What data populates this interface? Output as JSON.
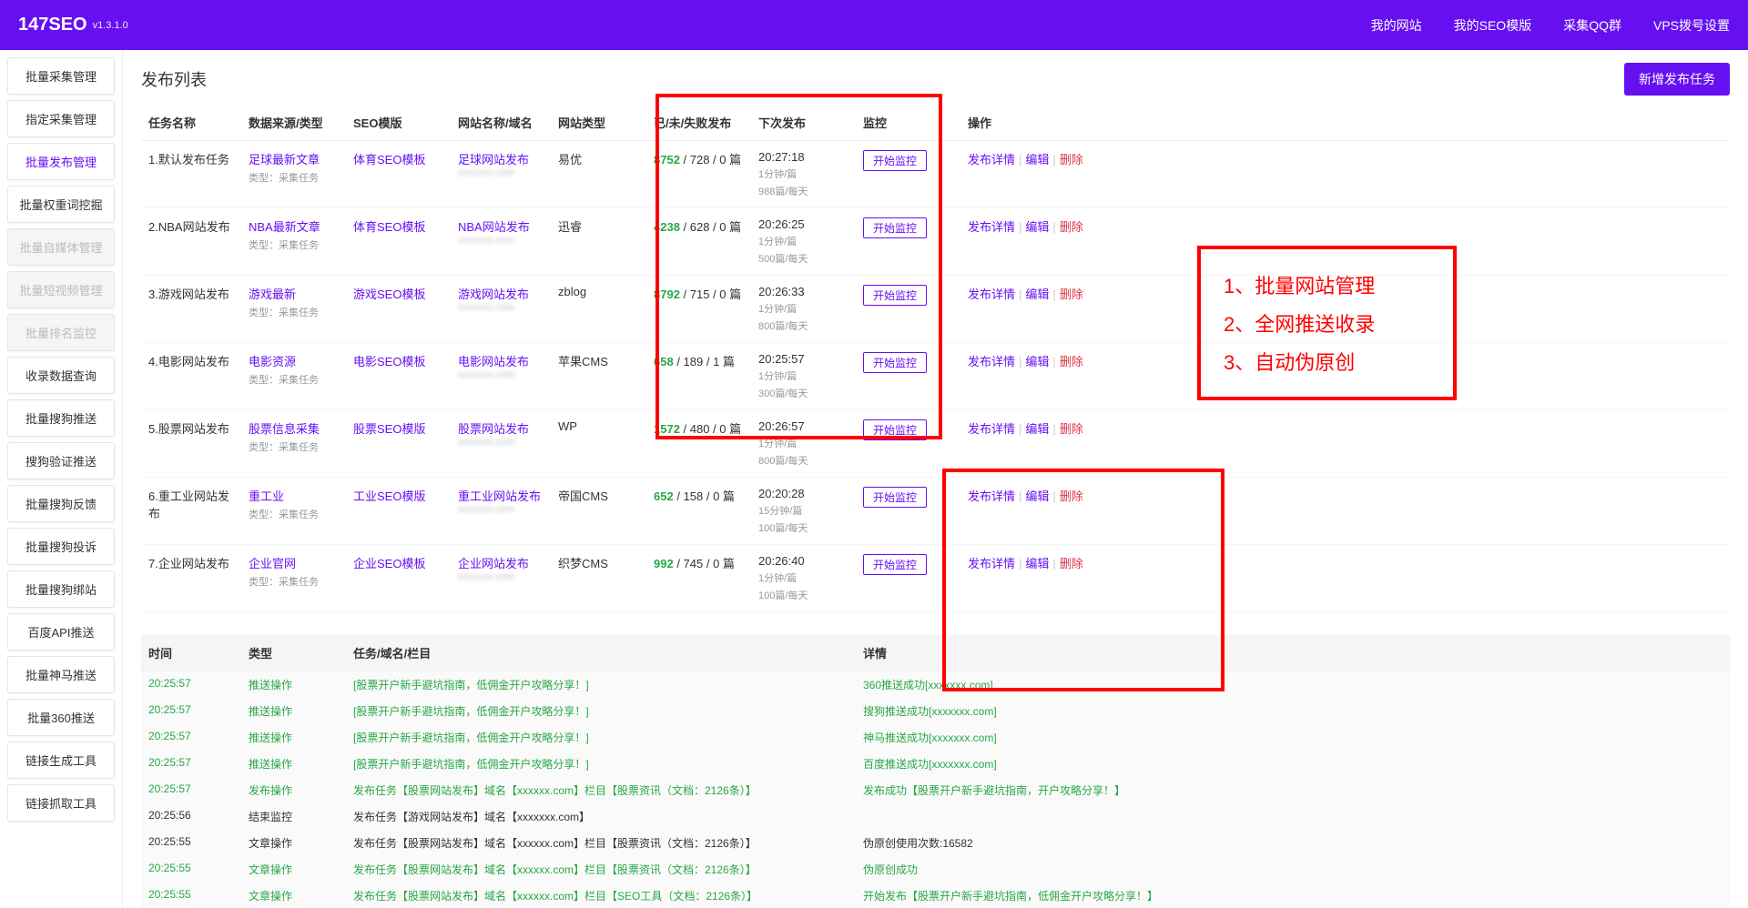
{
  "header": {
    "logo": "147SEO",
    "version": "v1.3.1.0",
    "nav": [
      "我的网站",
      "我的SEO模版",
      "采集QQ群",
      "VPS拨号设置"
    ]
  },
  "sidebar": {
    "items": [
      {
        "label": "批量采集管理",
        "state": ""
      },
      {
        "label": "指定采集管理",
        "state": ""
      },
      {
        "label": "批量发布管理",
        "state": "active"
      },
      {
        "label": "批量权重词挖掘",
        "state": ""
      },
      {
        "label": "批量自媒体管理",
        "state": "disabled"
      },
      {
        "label": "批量短视频管理",
        "state": "disabled"
      },
      {
        "label": "批量排名监控",
        "state": "disabled"
      },
      {
        "label": "收录数据查询",
        "state": ""
      },
      {
        "label": "批量搜狗推送",
        "state": ""
      },
      {
        "label": "搜狗验证推送",
        "state": ""
      },
      {
        "label": "批量搜狗反馈",
        "state": ""
      },
      {
        "label": "批量搜狗投诉",
        "state": ""
      },
      {
        "label": "批量搜狗绑站",
        "state": ""
      },
      {
        "label": "百度API推送",
        "state": ""
      },
      {
        "label": "批量神马推送",
        "state": ""
      },
      {
        "label": "批量360推送",
        "state": ""
      },
      {
        "label": "链接生成工具",
        "state": ""
      },
      {
        "label": "链接抓取工具",
        "state": ""
      }
    ]
  },
  "page": {
    "title": "发布列表",
    "new_button": "新增发布任务",
    "columns": [
      "任务名称",
      "数据来源/类型",
      "SEO模版",
      "网站名称/域名",
      "网站类型",
      "已/未/失败发布",
      "下次发布",
      "监控",
      "操作"
    ],
    "sub_type_label": "类型：采集任务",
    "monitor_btn": "开始监控",
    "op_detail": "发布详情",
    "op_edit": "编辑",
    "op_delete": "删除",
    "rows": [
      {
        "name": "1.默认发布任务",
        "source": "足球最新文章",
        "tpl": "体育SEO模板",
        "site": "足球网站发布",
        "domain": "xxxxxxx.com",
        "type": "易优",
        "done": "8752",
        "rest": " / 728 / 0 篇",
        "next": "20:27:18",
        "freq": "1分钟/篇",
        "daily": "988篇/每天"
      },
      {
        "name": "2.NBA网站发布",
        "source": "NBA最新文章",
        "tpl": "体育SEO模板",
        "site": "NBA网站发布",
        "domain": "xxxxxxx.com",
        "type": "迅睿",
        "done": "4238",
        "rest": " / 628 / 0 篇",
        "next": "20:26:25",
        "freq": "1分钟/篇",
        "daily": "500篇/每天"
      },
      {
        "name": "3.游戏网站发布",
        "source": "游戏最新",
        "tpl": "游戏SEO模板",
        "site": "游戏网站发布",
        "domain": "xxxxxxx.com",
        "type": "zblog",
        "done": "8792",
        "rest": " / 715 / 0 篇",
        "next": "20:26:33",
        "freq": "1分钟/篇",
        "daily": "800篇/每天"
      },
      {
        "name": "4.电影网站发布",
        "source": "电影资源",
        "tpl": "电影SEO模板",
        "site": "电影网站发布",
        "domain": "xxxxxxx.com",
        "type": "苹果CMS",
        "done": "658",
        "rest": " / 189 / 1 篇",
        "next": "20:25:57",
        "freq": "1分钟/篇",
        "daily": "300篇/每天"
      },
      {
        "name": "5.股票网站发布",
        "source": "股票信息采集",
        "tpl": "股票SEO模版",
        "site": "股票网站发布",
        "domain": "xxxxxxx.com",
        "type": "WP",
        "done": "1572",
        "rest": " / 480 / 0 篇",
        "next": "20:26:57",
        "freq": "1分钟/篇",
        "daily": "800篇/每天"
      },
      {
        "name": "6.重工业网站发布",
        "source": "重工业",
        "tpl": "工业SEO模版",
        "site": "重工业网站发布",
        "domain": "xxxxxxx.com",
        "type": "帝国CMS",
        "done": "652",
        "rest": " / 158 / 0 篇",
        "next": "20:20:28",
        "freq": "15分钟/篇",
        "daily": "100篇/每天"
      },
      {
        "name": "7.企业网站发布",
        "source": "企业官网",
        "tpl": "企业SEO模板",
        "site": "企业网站发布",
        "domain": "xxxxxxx.com",
        "type": "织梦CMS",
        "done": "992",
        "rest": " / 745 / 0 篇",
        "next": "20:26:40",
        "freq": "1分钟/篇",
        "daily": "100篇/每天"
      }
    ]
  },
  "callout": {
    "line1": "1、批量网站管理",
    "line2": "2、全网推送收录",
    "line3": "3、自动伪原创"
  },
  "log": {
    "columns": [
      "时间",
      "类型",
      "任务/域名/栏目",
      "详情"
    ],
    "rows": [
      {
        "time": "20:25:57",
        "type": "推送操作",
        "task": "[股票开户新手避坑指南，低佣金开户攻略分享！]",
        "detail": "360推送成功[xxxxxxx.com]",
        "green": true
      },
      {
        "time": "20:25:57",
        "type": "推送操作",
        "task": "[股票开户新手避坑指南，低佣金开户攻略分享！]",
        "detail": "搜狗推送成功[xxxxxxx.com]",
        "green": true
      },
      {
        "time": "20:25:57",
        "type": "推送操作",
        "task": "[股票开户新手避坑指南，低佣金开户攻略分享！]",
        "detail": "神马推送成功[xxxxxxx.com]",
        "green": true
      },
      {
        "time": "20:25:57",
        "type": "推送操作",
        "task": "[股票开户新手避坑指南，低佣金开户攻略分享！]",
        "detail": "百度推送成功[xxxxxxx.com]",
        "green": true
      },
      {
        "time": "20:25:57",
        "type": "发布操作",
        "task": "发布任务【股票网站发布】域名【xxxxxx.com】栏目【股票资讯（文档：2126条）】",
        "detail": "发布成功【股票开户新手避坑指南，开户攻略分享！】",
        "green": true
      },
      {
        "time": "20:25:56",
        "type": "结束监控",
        "task": "发布任务【游戏网站发布】域名【xxxxxxx.com】",
        "detail": "",
        "green": false
      },
      {
        "time": "20:25:55",
        "type": "文章操作",
        "task": "发布任务【股票网站发布】域名【xxxxxx.com】栏目【股票资讯（文档：2126条）】",
        "detail": "伪原创使用次数:16582",
        "green": false
      },
      {
        "time": "20:25:55",
        "type": "文章操作",
        "task": "发布任务【股票网站发布】域名【xxxxxx.com】栏目【股票资讯（文档：2126条）】",
        "detail": "伪原创成功",
        "green": true
      },
      {
        "time": "20:25:55",
        "type": "文章操作",
        "task": "发布任务【股票网站发布】域名【xxxxxx.com】栏目【SEO工具（文档：2126条）】",
        "detail": "开始发布【股票开户新手避坑指南，低佣金开户攻略分享！】",
        "green": true
      }
    ]
  }
}
